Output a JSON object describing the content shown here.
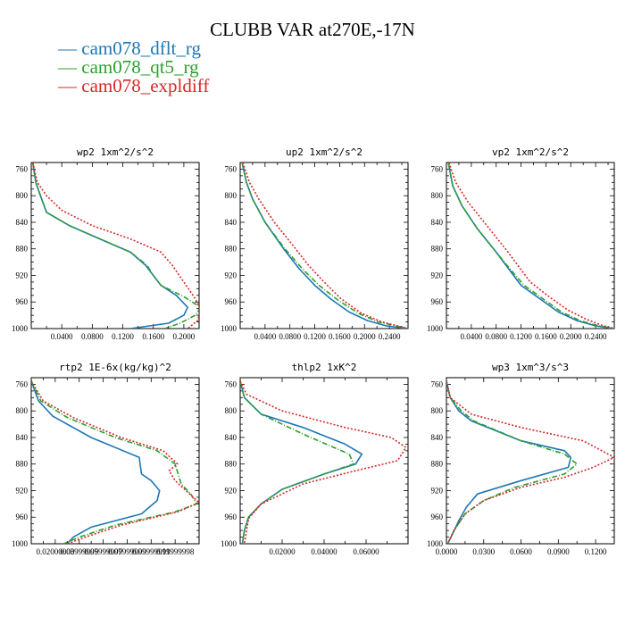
{
  "title": "CLUBB VAR at270E,-17N",
  "legend": [
    {
      "marker": "—",
      "label": "cam078_dflt_rg",
      "color": "#1f77b4"
    },
    {
      "marker": "—",
      "label": "cam078_qt5_rg",
      "color": "#2ca02c"
    },
    {
      "marker": "—",
      "label": "cam078_expldiff",
      "color": "#d62728"
    }
  ],
  "chart_data": [
    {
      "type": "line",
      "title": "wp2  1xm^2/s^2",
      "xlim": [
        0,
        0.22
      ],
      "ylim": [
        1000,
        750
      ],
      "xticks": [
        0.04,
        0.08,
        0.12,
        0.16,
        0.2
      ],
      "xticklabels": [
        "0.0400",
        "0.0800",
        "0.1200",
        "0.1600",
        "0.2000"
      ],
      "yticks": [
        760,
        800,
        840,
        880,
        920,
        960,
        1000
      ],
      "series": [
        {
          "color": "#1f77b4",
          "dash": "",
          "x": [
            0.002,
            0.006,
            0.012,
            0.02,
            0.05,
            0.09,
            0.13,
            0.15,
            0.16,
            0.17,
            0.19,
            0.205,
            0.2,
            0.18,
            0.13
          ],
          "y": [
            750,
            780,
            800,
            825,
            845,
            865,
            885,
            905,
            920,
            935,
            950,
            968,
            980,
            992,
            1000
          ]
        },
        {
          "color": "#2ca02c",
          "dash": "6,2,1,2",
          "x": [
            0.002,
            0.006,
            0.012,
            0.02,
            0.05,
            0.09,
            0.13,
            0.152,
            0.16,
            0.17,
            0.2,
            0.222,
            0.215,
            0.195,
            0.175
          ],
          "y": [
            750,
            780,
            800,
            825,
            845,
            865,
            885,
            905,
            920,
            935,
            952,
            968,
            980,
            992,
            1000
          ]
        },
        {
          "color": "#d62728",
          "dash": "2,2",
          "x": [
            0.002,
            0.008,
            0.02,
            0.04,
            0.08,
            0.13,
            0.17,
            0.185,
            0.2,
            0.215,
            0.222,
            0.218,
            0.205
          ],
          "y": [
            750,
            780,
            800,
            822,
            845,
            865,
            885,
            905,
            930,
            955,
            972,
            988,
            1000
          ]
        }
      ]
    },
    {
      "type": "line",
      "title": "up2  1xm^2/s^2",
      "xlim": [
        0,
        0.27
      ],
      "ylim": [
        1000,
        750
      ],
      "xticks": [
        0.04,
        0.08,
        0.12,
        0.16,
        0.2,
        0.24
      ],
      "xticklabels": [
        "0.0400",
        "0.0800",
        "0.1200",
        "0.1600",
        "0.2000",
        "0.2400"
      ],
      "yticks": [
        760,
        800,
        840,
        880,
        920,
        960,
        1000
      ],
      "series": [
        {
          "color": "#1f77b4",
          "dash": "",
          "x": [
            0.003,
            0.01,
            0.02,
            0.04,
            0.07,
            0.095,
            0.12,
            0.145,
            0.175,
            0.205,
            0.235,
            0.27
          ],
          "y": [
            750,
            780,
            805,
            840,
            880,
            910,
            935,
            955,
            975,
            988,
            996,
            1000
          ]
        },
        {
          "color": "#2ca02c",
          "dash": "6,2,1,2",
          "x": [
            0.003,
            0.01,
            0.02,
            0.04,
            0.072,
            0.1,
            0.127,
            0.157,
            0.19,
            0.222,
            0.27
          ],
          "y": [
            750,
            780,
            805,
            840,
            880,
            910,
            935,
            957,
            977,
            990,
            1000
          ]
        },
        {
          "color": "#d62728",
          "dash": "2,2",
          "x": [
            0.004,
            0.015,
            0.03,
            0.055,
            0.085,
            0.11,
            0.135,
            0.162,
            0.195,
            0.228,
            0.27
          ],
          "y": [
            750,
            780,
            805,
            840,
            875,
            905,
            930,
            955,
            977,
            990,
            1000
          ]
        }
      ]
    },
    {
      "type": "line",
      "title": "vp2  1xm^2/s^2",
      "xlim": [
        0,
        0.27
      ],
      "ylim": [
        1000,
        750
      ],
      "xticks": [
        0.04,
        0.08,
        0.12,
        0.16,
        0.2,
        0.24
      ],
      "xticklabels": [
        "0.0400",
        "0.0800",
        "0.1200",
        "0.1600",
        "0.2000",
        "0.2400"
      ],
      "yticks": [
        760,
        800,
        840,
        880,
        920,
        960,
        1000
      ],
      "series": [
        {
          "color": "#1f77b4",
          "dash": "",
          "x": [
            0.003,
            0.01,
            0.025,
            0.05,
            0.08,
            0.1,
            0.12,
            0.15,
            0.18,
            0.21,
            0.24,
            0.27
          ],
          "y": [
            750,
            785,
            815,
            850,
            885,
            910,
            935,
            955,
            975,
            988,
            996,
            1000
          ]
        },
        {
          "color": "#2ca02c",
          "dash": "6,2,1,2",
          "x": [
            0.003,
            0.01,
            0.025,
            0.05,
            0.08,
            0.102,
            0.125,
            0.155,
            0.185,
            0.215,
            0.245,
            0.27
          ],
          "y": [
            750,
            785,
            815,
            850,
            885,
            910,
            935,
            955,
            975,
            988,
            996,
            1000
          ]
        },
        {
          "color": "#d62728",
          "dash": "2,2",
          "x": [
            0.004,
            0.015,
            0.035,
            0.065,
            0.095,
            0.115,
            0.135,
            0.165,
            0.195,
            0.225,
            0.25,
            0.27
          ],
          "y": [
            750,
            780,
            810,
            845,
            880,
            905,
            930,
            952,
            972,
            986,
            995,
            1000
          ]
        }
      ]
    },
    {
      "type": "line",
      "title": "rtp2  1E-6x(kg/kg)^2",
      "xlim": [
        0,
        0.14
      ],
      "ylim": [
        1000,
        750
      ],
      "xticks": [
        0.02,
        0.04,
        0.06,
        0.08,
        0.1,
        0.12
      ],
      "xticklabels": [
        "0.02000000",
        "0.03999999",
        "0.05999999",
        "0.07999999",
        "0.09999999",
        "0.11999998"
      ],
      "yticks": [
        760,
        800,
        840,
        880,
        920,
        960,
        1000
      ],
      "series": [
        {
          "color": "#1f77b4",
          "dash": "",
          "x": [
            0.0,
            0.006,
            0.018,
            0.05,
            0.09,
            0.092,
            0.1,
            0.107,
            0.105,
            0.092,
            0.05,
            0.035,
            0.03
          ],
          "y": [
            755,
            785,
            808,
            840,
            870,
            895,
            905,
            920,
            935,
            955,
            975,
            990,
            1000
          ]
        },
        {
          "color": "#2ca02c",
          "dash": "6,2,1,2",
          "x": [
            0.0,
            0.008,
            0.03,
            0.07,
            0.105,
            0.12,
            0.125,
            0.133,
            0.138,
            0.12,
            0.07,
            0.04,
            0.027
          ],
          "y": [
            755,
            785,
            810,
            840,
            860,
            880,
            910,
            925,
            940,
            952,
            972,
            990,
            1000
          ]
        },
        {
          "color": "#d62728",
          "dash": "2,2",
          "x": [
            0.0,
            0.01,
            0.035,
            0.075,
            0.11,
            0.122,
            0.115,
            0.12,
            0.14,
            0.122,
            0.075,
            0.045,
            0.03
          ],
          "y": [
            755,
            785,
            810,
            840,
            860,
            880,
            890,
            905,
            938,
            952,
            972,
            990,
            1000
          ]
        }
      ]
    },
    {
      "type": "line",
      "title": "thlp2  1xK^2",
      "xlim": [
        0,
        0.08
      ],
      "ylim": [
        1000,
        750
      ],
      "xticks": [
        0.02,
        0.04,
        0.06
      ],
      "xticklabels": [
        "0.02000",
        "0.04000",
        "0.06000"
      ],
      "yticks": [
        760,
        800,
        840,
        880,
        920,
        960,
        1000
      ],
      "series": [
        {
          "color": "#1f77b4",
          "dash": "",
          "x": [
            0.0,
            0.002,
            0.01,
            0.03,
            0.05,
            0.058,
            0.055,
            0.04,
            0.02,
            0.01,
            0.004,
            0.002,
            0.001
          ],
          "y": [
            755,
            780,
            805,
            825,
            850,
            865,
            880,
            895,
            918,
            940,
            960,
            980,
            1000
          ]
        },
        {
          "color": "#2ca02c",
          "dash": "6,2,1,2",
          "x": [
            0.0,
            0.002,
            0.01,
            0.03,
            0.052,
            0.054,
            0.04,
            0.02,
            0.01,
            0.004,
            0.002,
            0.001
          ],
          "y": [
            755,
            780,
            805,
            835,
            865,
            880,
            895,
            918,
            940,
            960,
            980,
            1000
          ]
        },
        {
          "color": "#d62728",
          "dash": "2,2",
          "x": [
            0.0,
            0.003,
            0.02,
            0.05,
            0.072,
            0.079,
            0.075,
            0.055,
            0.03,
            0.01,
            0.004,
            0.002
          ],
          "y": [
            755,
            775,
            800,
            825,
            840,
            855,
            875,
            890,
            910,
            940,
            962,
            1000
          ]
        }
      ]
    },
    {
      "type": "line",
      "title": "wp3  1xm^3/s^3",
      "xlim": [
        0,
        0.135
      ],
      "ylim": [
        1000,
        750
      ],
      "xticks": [
        0.0,
        0.03,
        0.06,
        0.09,
        0.12
      ],
      "xticklabels": [
        "0.0000",
        "0.0300",
        "0.0600",
        "0.0900",
        "0.1200"
      ],
      "yticks": [
        760,
        800,
        840,
        880,
        920,
        960,
        1000
      ],
      "series": [
        {
          "color": "#1f77b4",
          "dash": "",
          "x": [
            0.0,
            0.003,
            0.01,
            0.02,
            0.06,
            0.095,
            0.1,
            0.098,
            0.06,
            0.025,
            0.016,
            0.01,
            0.005,
            0.001
          ],
          "y": [
            755,
            780,
            800,
            815,
            845,
            860,
            870,
            885,
            905,
            925,
            945,
            965,
            985,
            1000
          ]
        },
        {
          "color": "#2ca02c",
          "dash": "6,2,1,2",
          "x": [
            0.0,
            0.003,
            0.012,
            0.022,
            0.06,
            0.095,
            0.105,
            0.095,
            0.055,
            0.03,
            0.015,
            0.006,
            0.001
          ],
          "y": [
            755,
            780,
            800,
            815,
            845,
            865,
            880,
            895,
            915,
            935,
            955,
            980,
            1000
          ]
        },
        {
          "color": "#d62728",
          "dash": "2,2",
          "x": [
            0.0,
            0.003,
            0.02,
            0.06,
            0.11,
            0.135,
            0.118,
            0.095,
            0.06,
            0.03,
            0.015,
            0.006,
            0.001
          ],
          "y": [
            755,
            780,
            805,
            825,
            845,
            870,
            885,
            900,
            915,
            935,
            955,
            980,
            1000
          ]
        }
      ]
    }
  ]
}
